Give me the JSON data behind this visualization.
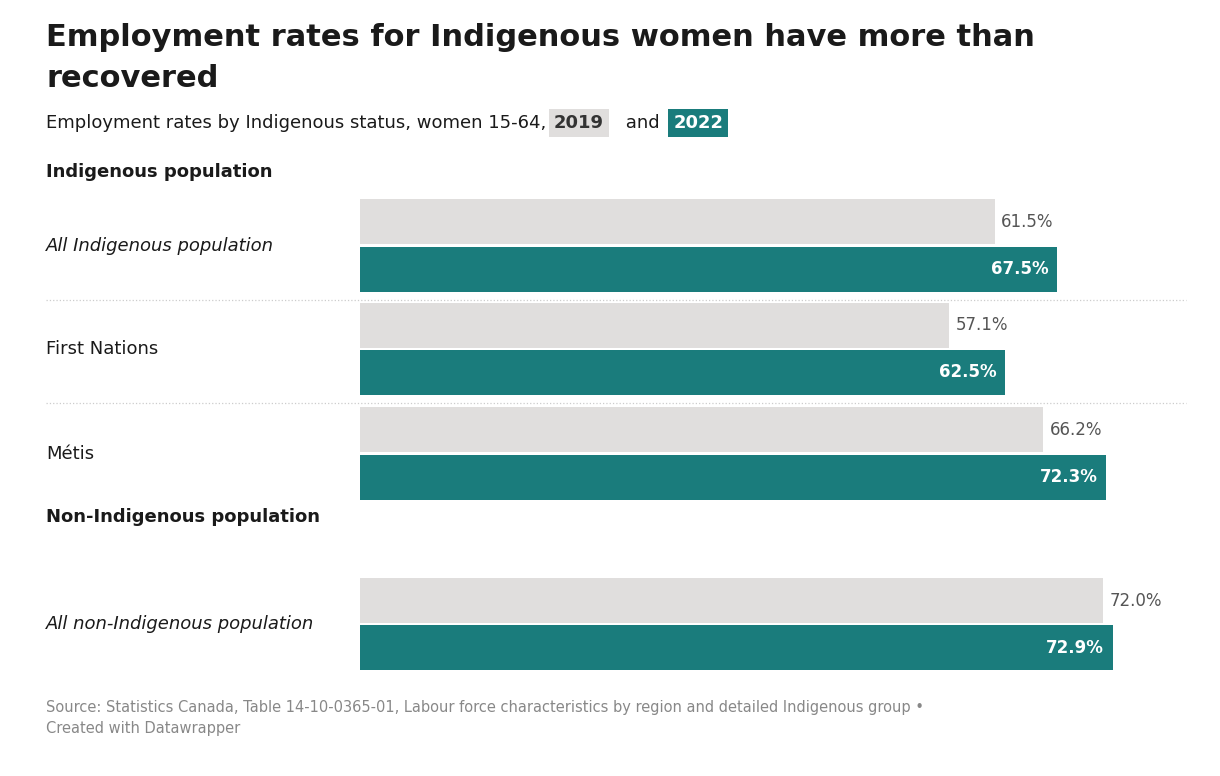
{
  "title_line1": "Employment rates for Indigenous women have more than",
  "title_line2": "recovered",
  "subtitle_plain": "Employment rates by Indigenous status, women 15-64,",
  "subtitle_2019": "2019",
  "subtitle_and": "and",
  "subtitle_2022": "2022",
  "groups": [
    {
      "label": "All Indigenous population",
      "italic": true,
      "val_2019": 61.5,
      "val_2022": 67.5,
      "section": "Indigenous population"
    },
    {
      "label": "First Nations",
      "italic": false,
      "val_2019": 57.1,
      "val_2022": 62.5,
      "section": null
    },
    {
      "label": "Métis",
      "italic": false,
      "val_2019": 66.2,
      "val_2022": 72.3,
      "section": null
    },
    {
      "label": "All non-Indigenous population",
      "italic": true,
      "val_2019": 72.0,
      "val_2022": 72.9,
      "section": "Non-Indigenous population"
    }
  ],
  "color_2019": "#e0dedd",
  "color_2022": "#1a7c7c",
  "color_2019_badge": "#e0dedd",
  "color_2022_badge": "#1a7c7c",
  "background_color": "#ffffff",
  "title_fontsize": 22,
  "subtitle_fontsize": 13,
  "label_fontsize": 13,
  "value_fontsize": 12,
  "section_fontsize": 13,
  "source_text": "Source: Statistics Canada, Table 14-10-0365-01, Labour force characteristics by region and detailed Indigenous group •\nCreated with Datawrapper",
  "source_fontsize": 10.5,
  "xlim_max": 80
}
